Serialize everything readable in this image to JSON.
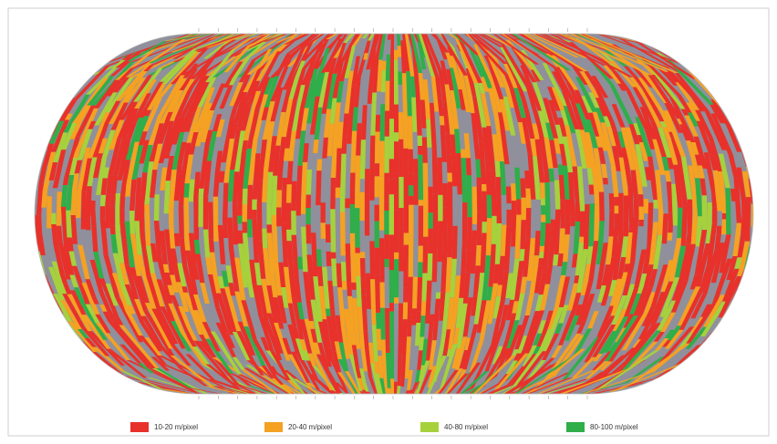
{
  "legend": {
    "items": [
      {
        "label": "10-20 m/pixel",
        "color": "#e8312a"
      },
      {
        "label": "20-40 m/pixel",
        "color": "#f5a122"
      },
      {
        "label": "40-80 m/pixel",
        "color": "#a6d13c"
      },
      {
        "label": "80-100 m/pixel",
        "color": "#2fae49"
      }
    ]
  }
}
